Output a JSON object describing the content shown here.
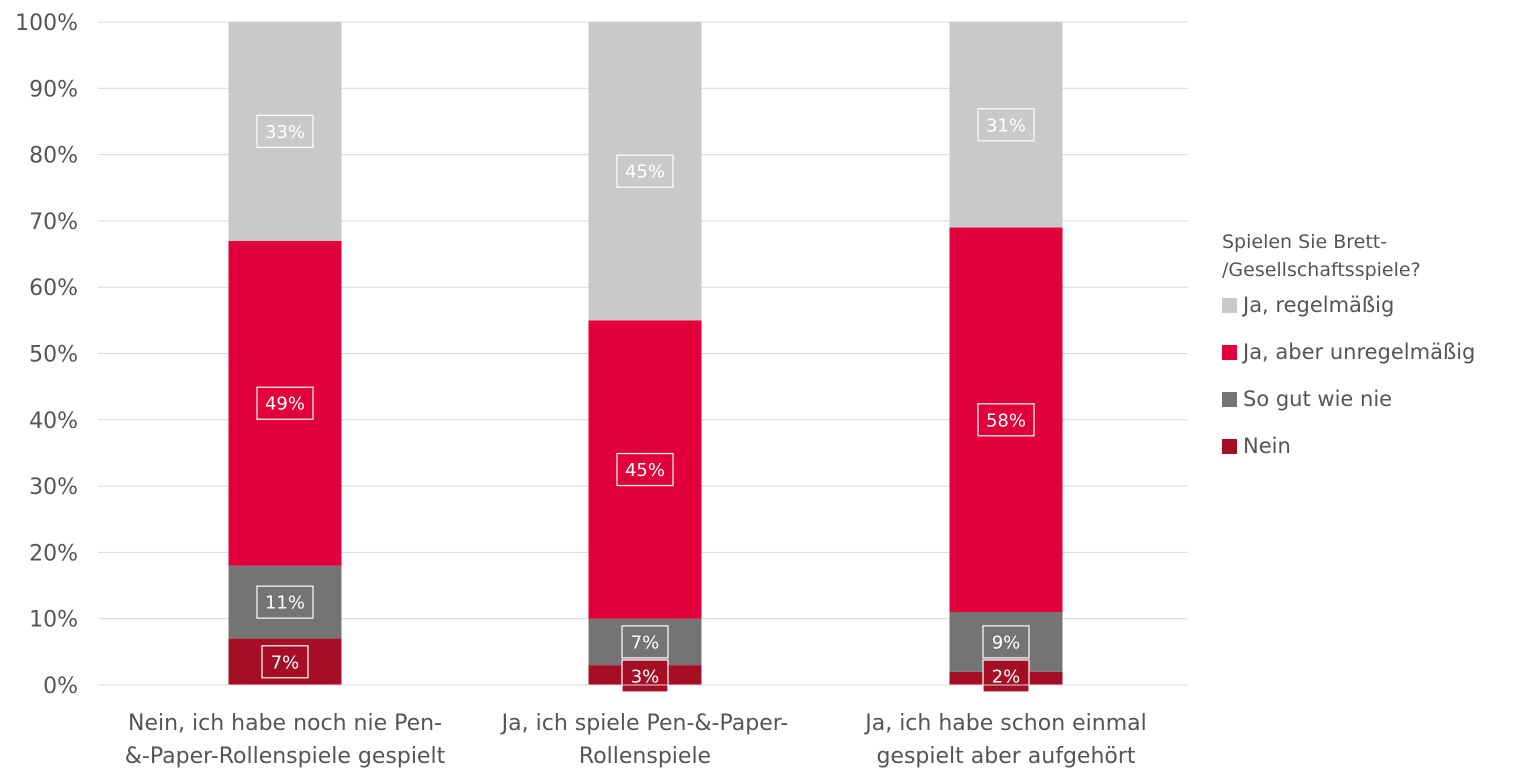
{
  "chart_data": {
    "type": "bar",
    "stacked": true,
    "orientation": "vertical",
    "categories": [
      [
        "Nein, ich habe noch nie Pen-",
        "&-Paper-Rollenspiele gespielt"
      ],
      [
        "Ja, ich spiele Pen-&-Paper-",
        "Rollenspiele"
      ],
      [
        "Ja, ich habe schon einmal",
        "gespielt aber aufgehört"
      ]
    ],
    "series": [
      {
        "name": "Nein",
        "color": "#a50f25",
        "values": [
          7,
          3,
          2
        ],
        "labels": [
          "7%",
          "3%",
          "2%"
        ]
      },
      {
        "name": "So gut wie nie",
        "color": "#747474",
        "values": [
          11,
          7,
          9
        ],
        "labels": [
          "11%",
          "7%",
          "9%"
        ]
      },
      {
        "name": "Ja, aber unregelmäßig",
        "color": "#e2003a",
        "values": [
          49,
          45,
          58
        ],
        "labels": [
          "49%",
          "45%",
          "58%"
        ]
      },
      {
        "name": "Ja, regelmäßig",
        "color": "#c9c9c9",
        "values": [
          33,
          45,
          31
        ],
        "labels": [
          "33%",
          "45%",
          "31%"
        ]
      }
    ],
    "y_ticks": [
      "0%",
      "10%",
      "20%",
      "30%",
      "40%",
      "50%",
      "60%",
      "70%",
      "80%",
      "90%",
      "100%"
    ],
    "ylim": [
      0,
      100
    ],
    "grid": true,
    "gridline_color": "#d9d9d9",
    "legend": {
      "position": "right",
      "title_lines": [
        "Spielen Sie Brett-",
        "/Gesellschaftsspiele?"
      ],
      "order": [
        "Ja, regelmäßig",
        "Ja, aber unregelmäßig",
        "So gut wie nie",
        "Nein"
      ]
    }
  }
}
